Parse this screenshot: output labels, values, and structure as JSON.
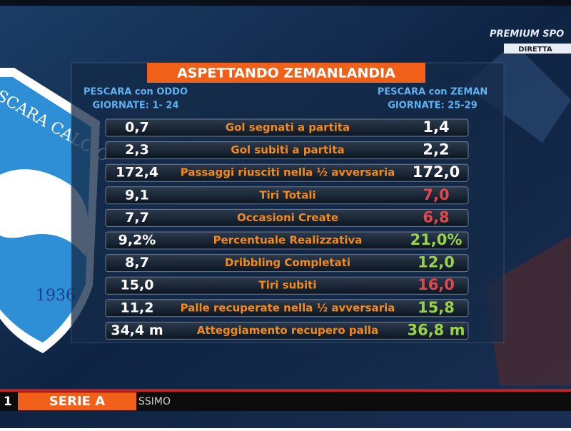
{
  "broadcaster": {
    "logo": "PREMIUM SPO",
    "badge": "DIRETTA"
  },
  "crest": {
    "name": "PESCARA CALCIO",
    "year": "1936"
  },
  "table": {
    "title": "ASPETTANDO ZEMANLANDIA",
    "left_header": [
      "PESCARA con ODDO",
      "GIORNATE: 1- 24"
    ],
    "right_header": [
      "PESCARA con ZEMAN",
      "GIORNATE: 25-29"
    ],
    "rows": [
      {
        "left": "0,7",
        "stat": "Gol segnati a partita",
        "right": "1,4",
        "right_color": "#ffffff"
      },
      {
        "left": "2,3",
        "stat": "Gol subiti a partita",
        "right": "2,2",
        "right_color": "#ffffff"
      },
      {
        "left": "172,4",
        "stat": "Passaggi riusciti nella ½ avversaria",
        "right": "172,0",
        "right_color": "#ffffff"
      },
      {
        "left": "9,1",
        "stat": "Tiri Totali",
        "right": "7,0",
        "right_color": "#e2474b"
      },
      {
        "left": "7,7",
        "stat": "Occasioni Create",
        "right": "6,8",
        "right_color": "#e2474b"
      },
      {
        "left": "9,2%",
        "stat": "Percentuale Realizzativa",
        "right": "21,0%",
        "right_color": "#9ad24a"
      },
      {
        "left": "8,7",
        "stat": "Dribbling Completati",
        "right": "12,0",
        "right_color": "#9ad24a"
      },
      {
        "left": "15,0",
        "stat": "Tiri subiti",
        "right": "16,0",
        "right_color": "#e2474b"
      },
      {
        "left": "11,2",
        "stat": "Palle recuperate nella ½ avversaria",
        "right": "15,8",
        "right_color": "#9ad24a"
      },
      {
        "left": "34,4 m",
        "stat": "Atteggiamento recupero palla",
        "right": "36,8 m",
        "right_color": "#9ad24a"
      }
    ]
  },
  "ticker": {
    "number": "1",
    "label": "SERIE A",
    "next": "SSIMO"
  }
}
